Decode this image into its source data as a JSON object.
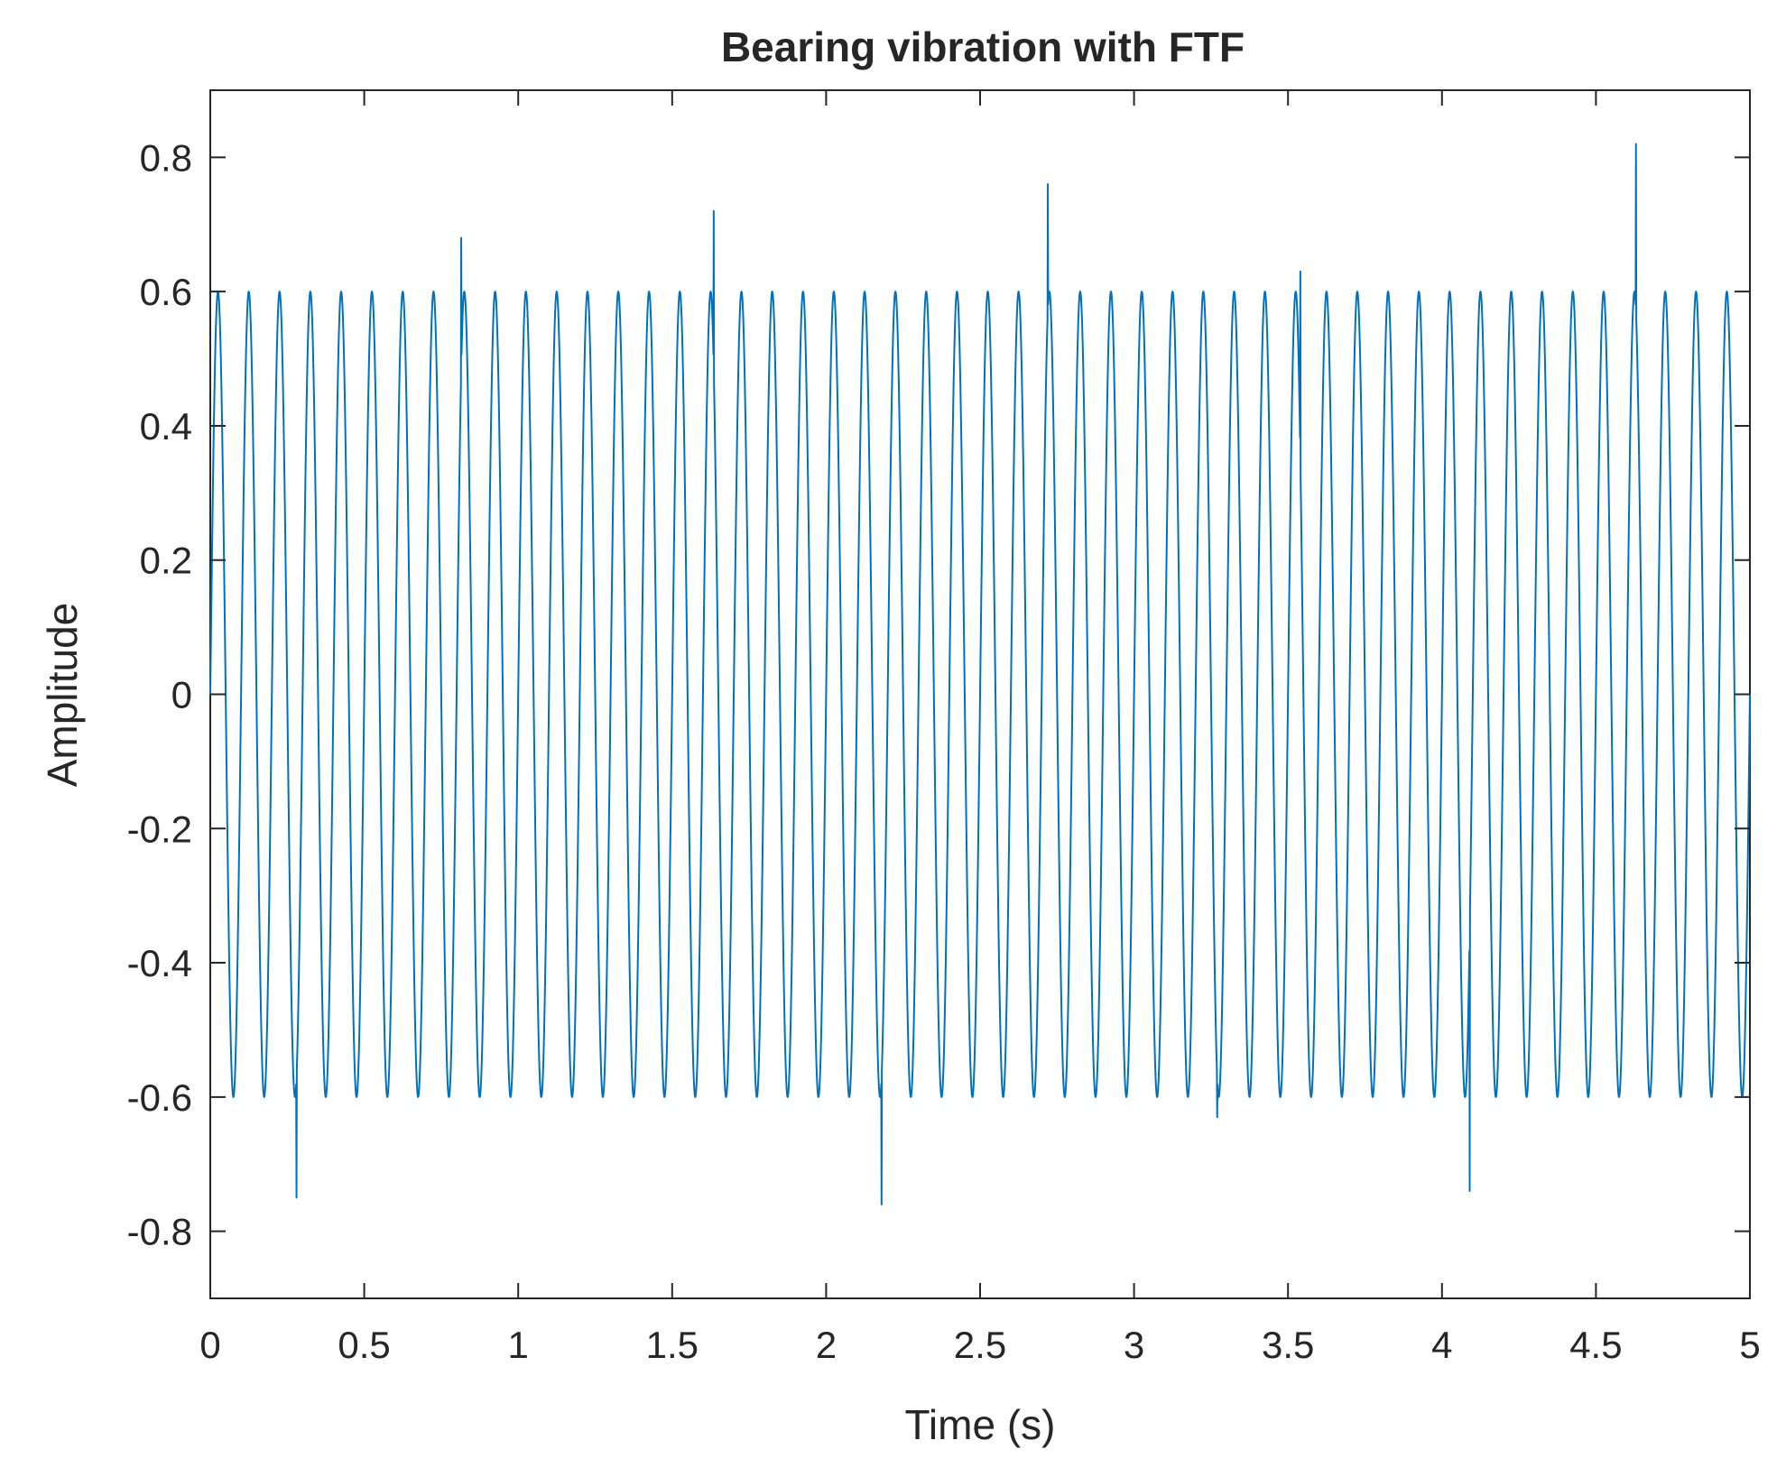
{
  "chart_data": {
    "type": "line",
    "title": "Bearing vibration with FTF",
    "xlabel": "Time (s)",
    "ylabel": "Amplitude",
    "xlim": [
      0,
      5
    ],
    "ylim": [
      -0.9,
      0.9
    ],
    "grid": false,
    "xticks": [
      0,
      0.5,
      1,
      1.5,
      2,
      2.5,
      3,
      3.5,
      4,
      4.5,
      5
    ],
    "xtick_labels": [
      "0",
      "0.5",
      "1",
      "1.5",
      "2",
      "2.5",
      "3",
      "3.5",
      "4",
      "4.5",
      "5"
    ],
    "yticks": [
      0.8,
      0.6,
      0.4,
      0.2,
      0,
      -0.2,
      -0.4,
      -0.6,
      -0.8
    ],
    "ytick_labels": [
      "0.8",
      "0.6",
      "0.4",
      "0.2",
      "0",
      "-0.2",
      "-0.4",
      "-0.6",
      "-0.8"
    ],
    "series": [
      {
        "name": "Bearing vibration",
        "color": "#0072BD",
        "signal": {
          "kind": "sinusoid",
          "frequency_hz": 10,
          "amplitude": 0.6,
          "sample_rate_hz": 1000,
          "duration_s": 5
        },
        "impulses": [
          {
            "t": 0.28,
            "value": -0.75
          },
          {
            "t": 0.815,
            "value": 0.68
          },
          {
            "t": 1.635,
            "value": 0.72
          },
          {
            "t": 2.18,
            "value": -0.76
          },
          {
            "t": 2.72,
            "value": 0.76
          },
          {
            "t": 3.27,
            "value": -0.63
          },
          {
            "t": 3.54,
            "value": 0.63
          },
          {
            "t": 4.09,
            "value": -0.74
          },
          {
            "t": 4.63,
            "value": 0.82
          }
        ]
      }
    ]
  }
}
